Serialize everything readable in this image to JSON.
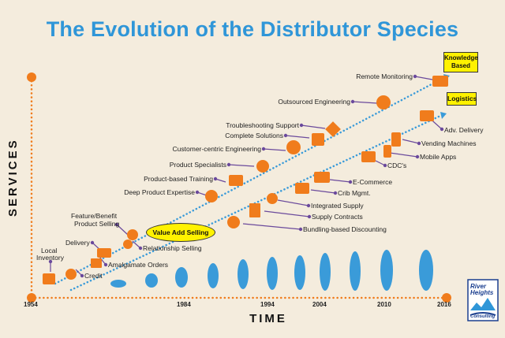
{
  "title": "The Evolution of the Distributor Species",
  "axes": {
    "y_label": "SERVICES",
    "x_label": "TIME"
  },
  "years": [
    "1954",
    "1984",
    "1994",
    "2004",
    "2010",
    "2016"
  ],
  "callouts": {
    "value_add": "Value Add Selling",
    "knowledge": "Knowledge Based",
    "logistics": "Logistics"
  },
  "logo": {
    "line1": "River",
    "line2": "Heights",
    "line3": "Consulting"
  },
  "upper_labels": [
    "Remote Monitoring",
    "Outsourced Engineering",
    "Troubleshooting Support",
    "Complete Solutions",
    "Customer-centric Engineering",
    "Product Specialists",
    "Product-based Training",
    "Deep Product Expertise",
    "Feature/Benefit",
    "Product Selling",
    "Delivery",
    "Local",
    "Inventory"
  ],
  "lower_labels": [
    "Adv. Delivery",
    "Vending Machines",
    "Mobile Apps",
    "CDC's",
    "E-Commerce",
    "Crib Mgmt.",
    "Integrated Supply",
    "Supply Contracts",
    "Bundling-based Discounting",
    "Relationship Selling",
    "Amalgamate Orders",
    "Credit"
  ],
  "colors": {
    "orange": "#f07c1c",
    "blue": "#3a9bd9",
    "purple": "#6b4a9c",
    "yellow": "#fff200",
    "background": "#f4ecdd"
  }
}
